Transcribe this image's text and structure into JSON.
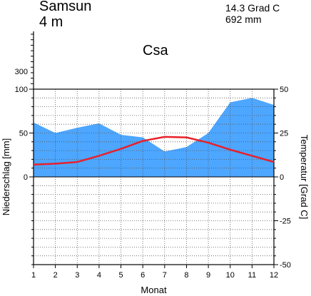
{
  "header": {
    "station": "Samsun",
    "elevation": "4 m",
    "annual_temperature": "14.3 Grad C",
    "annual_precipitation": "692 mm",
    "climate_class": "Csa"
  },
  "chart_data": {
    "type": "area",
    "categories": [
      "1",
      "2",
      "3",
      "4",
      "5",
      "6",
      "7",
      "8",
      "9",
      "10",
      "11",
      "12"
    ],
    "x": [
      1,
      2,
      3,
      4,
      5,
      6,
      7,
      8,
      9,
      10,
      11,
      12
    ],
    "xlabel": "Monat",
    "y_left_label": "Niederschlag [mm]",
    "y_right_label": "Temperatur [Grad C]",
    "precip_ylim": [
      -100,
      100
    ],
    "precip_ticks": [
      0,
      50,
      100
    ],
    "precip_extra_tick": 300,
    "temp_ylim": [
      -50,
      50
    ],
    "temp_ticks": [
      -50,
      -25,
      0,
      25,
      50
    ],
    "grid": true,
    "series": [
      {
        "kind": "precipitation",
        "values": [
          62,
          50,
          56,
          61,
          48,
          45,
          29,
          34,
          50,
          85,
          90,
          82
        ],
        "color": "#4da6ff"
      },
      {
        "kind": "temperature",
        "values": [
          7.0,
          7.5,
          8.5,
          12.0,
          16.0,
          20.5,
          22.8,
          22.5,
          19.5,
          15.5,
          12.0,
          8.5
        ],
        "color": "#e8202a"
      }
    ]
  }
}
